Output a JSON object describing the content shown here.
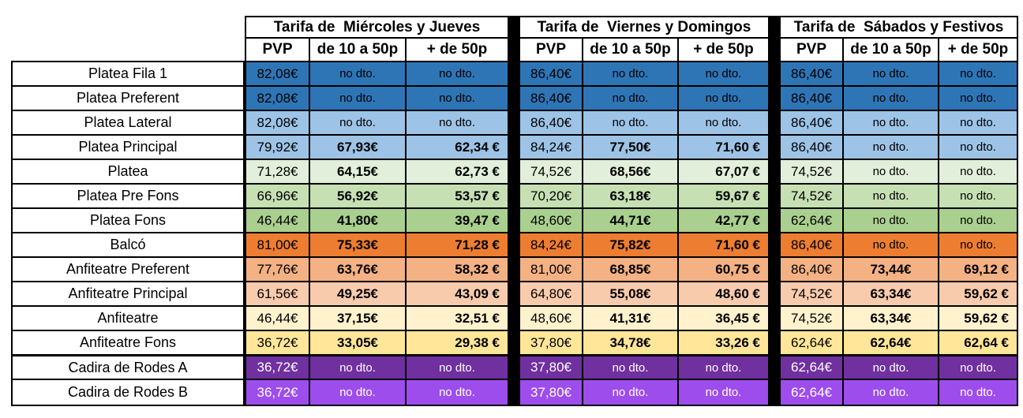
{
  "table": {
    "no_discount_label": "no dto.",
    "border_color": "#000000",
    "groups": [
      {
        "title": "Tarifa de  Miércoles y Jueves",
        "columns": [
          "PVP",
          "de 10 a 50p",
          "+ de 50p"
        ]
      },
      {
        "title": "Tarifa de  Viernes y Domingos",
        "columns": [
          "PVP",
          "de 10 a 50p",
          "+ de 50p"
        ]
      },
      {
        "title": "Tarifa de  Sábados y Festivos",
        "columns": [
          "PVP",
          "de 10 a 50p",
          "+ de 50p"
        ]
      }
    ],
    "rows": [
      {
        "label": "Platea Fila 1",
        "color": "#2E75B6",
        "text": "#000000",
        "cells": [
          [
            "82,08€",
            "no dto.",
            "no dto."
          ],
          [
            "86,40€",
            "no dto.",
            "no dto."
          ],
          [
            "86,40€",
            "no dto.",
            "no dto."
          ]
        ]
      },
      {
        "label": "Platea Preferent",
        "color": "#2E75B6",
        "text": "#000000",
        "cells": [
          [
            "82,08€",
            "no dto.",
            "no dto."
          ],
          [
            "86,40€",
            "no dto.",
            "no dto."
          ],
          [
            "86,40€",
            "no dto.",
            "no dto."
          ]
        ]
      },
      {
        "label": "Platea Lateral",
        "color": "#9DC3E6",
        "text": "#000000",
        "cells": [
          [
            "82,08€",
            "no dto.",
            "no dto."
          ],
          [
            "86,40€",
            "no dto.",
            "no dto."
          ],
          [
            "86,40€",
            "no dto.",
            "no dto."
          ]
        ]
      },
      {
        "label": "Platea Principal",
        "color": "#9DC3E6",
        "text": "#000000",
        "cells": [
          [
            "79,92€",
            "67,93€",
            "62,34 €"
          ],
          [
            "84,24€",
            "77,50€",
            "71,60 €"
          ],
          [
            "86,40€",
            "no dto.",
            "no dto."
          ]
        ]
      },
      {
        "label": "Platea",
        "color": "#E2EFDA",
        "text": "#000000",
        "cells": [
          [
            "71,28€",
            "64,15€",
            "62,73 €"
          ],
          [
            "74,52€",
            "68,56€",
            "67,07 €"
          ],
          [
            "74,52€",
            "no dto.",
            "no dto."
          ]
        ]
      },
      {
        "label": "Platea Pre Fons",
        "color": "#C6E0B4",
        "text": "#000000",
        "cells": [
          [
            "66,96€",
            "56,92€",
            "53,57 €"
          ],
          [
            "70,20€",
            "63,18€",
            "59,67 €"
          ],
          [
            "74,52€",
            "no dto.",
            "no dto."
          ]
        ]
      },
      {
        "label": "Platea Fons",
        "color": "#A9D08E",
        "text": "#000000",
        "cells": [
          [
            "46,44€",
            "41,80€",
            "39,47 €"
          ],
          [
            "48,60€",
            "44,71€",
            "42,77 €"
          ],
          [
            "62,64€",
            "no dto.",
            "no dto."
          ]
        ]
      },
      {
        "label": "Balcó",
        "color": "#ED7D31",
        "text": "#000000",
        "cells": [
          [
            "81,00€",
            "75,33€",
            "71,28 €"
          ],
          [
            "84,24€",
            "75,82€",
            "71,60 €"
          ],
          [
            "86,40€",
            "no dto.",
            "no dto."
          ]
        ]
      },
      {
        "label": "Anfiteatre Preferent",
        "color": "#F4B183",
        "text": "#000000",
        "cells": [
          [
            "77,76€",
            "63,76€",
            "58,32 €"
          ],
          [
            "81,00€",
            "68,85€",
            "60,75 €"
          ],
          [
            "86,40€",
            "73,44€",
            "69,12 €"
          ]
        ]
      },
      {
        "label": "Anfiteatre Principal",
        "color": "#F8CBAD",
        "text": "#000000",
        "cells": [
          [
            "61,56€",
            "49,25€",
            "43,09 €"
          ],
          [
            "64,80€",
            "55,08€",
            "48,60 €"
          ],
          [
            "74,52€",
            "63,34€",
            "59,62 €"
          ]
        ]
      },
      {
        "label": "Anfiteatre",
        "color": "#FFF2CC",
        "text": "#000000",
        "cells": [
          [
            "46,44€",
            "37,15€",
            "32,51 €"
          ],
          [
            "48,60€",
            "41,31€",
            "36,45 €"
          ],
          [
            "74,52€",
            "63,34€",
            "59,62 €"
          ]
        ]
      },
      {
        "label": "Anfiteatre Fons",
        "color": "#FFE699",
        "text": "#000000",
        "cells": [
          [
            "36,72€",
            "33,05€",
            "29,38 €"
          ],
          [
            "37,80€",
            "34,78€",
            "33,26 €"
          ],
          [
            "62,64€",
            "62,64€",
            "62,64 €"
          ]
        ]
      },
      {
        "label": "Cadira de Rodes A",
        "color": "#7030A0",
        "text": "#FFFFFF",
        "cells": [
          [
            "36,72€",
            "no dto.",
            "no dto."
          ],
          [
            "37,80€",
            "no dto.",
            "no dto."
          ],
          [
            "62,64€",
            "no dto.",
            "no dto."
          ]
        ]
      },
      {
        "label": "Cadira de Rodes B",
        "color": "#9D4DEB",
        "text": "#FFFFFF",
        "cells": [
          [
            "36,72€",
            "no dto.",
            "no dto."
          ],
          [
            "37,80€",
            "no dto.",
            "no dto."
          ],
          [
            "62,64€",
            "no dto.",
            "no dto."
          ]
        ]
      }
    ]
  }
}
